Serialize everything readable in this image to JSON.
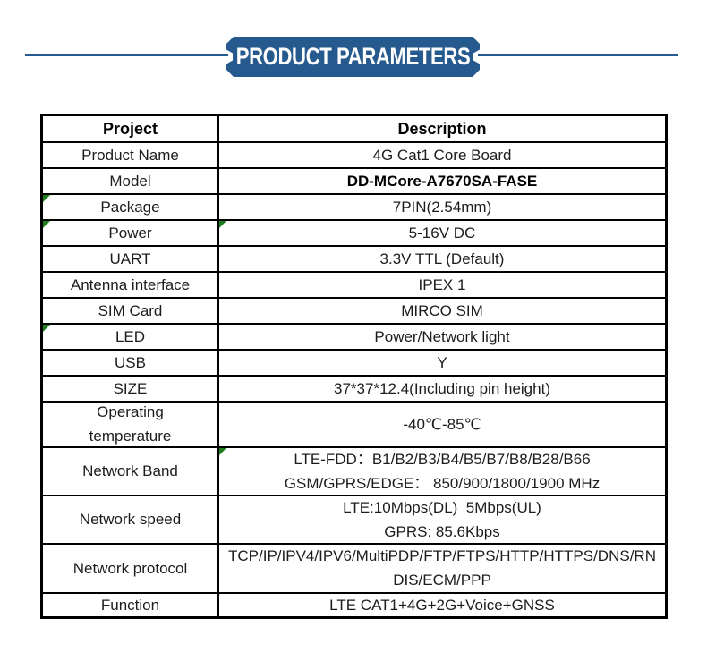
{
  "header": {
    "title": "PRODUCT PARAMETERS",
    "accent_color": "#265a8e"
  },
  "table": {
    "flag_color": "#1e7e1e",
    "border_color": "#000000",
    "columns": {
      "project": "Project",
      "description": "Description"
    },
    "rows": [
      {
        "project": "Product Name",
        "description": "4G Cat1 Core Board"
      },
      {
        "project": "Model",
        "description": "DD-MCore-A7670SA-FASE"
      },
      {
        "project": "Package",
        "description": "7PIN(2.54mm)"
      },
      {
        "project": "Power",
        "description": "5-16V DC"
      },
      {
        "project": "UART",
        "description": "3.3V TTL (Default)"
      },
      {
        "project": "Antenna interface",
        "description": "IPEX 1"
      },
      {
        "project": "SIM Card",
        "description": "MIRCO SIM"
      },
      {
        "project": "LED",
        "description": "Power/Network light"
      },
      {
        "project": "USB",
        "description": "Y"
      },
      {
        "project": "SIZE",
        "description": "37*37*12.4(Including pin height)"
      },
      {
        "project": "Operating temperature",
        "description": "-40℃-85℃"
      },
      {
        "project": "Network Band",
        "description_line1": "LTE-FDD：B1/B2/B3/B4/B5/B7/B8/B28/B66",
        "description_line2": "GSM/GPRS/EDGE： 850/900/1800/1900 MHz"
      },
      {
        "project": "Network speed",
        "description_line1": "LTE:10Mbps(DL)  5Mbps(UL)",
        "description_line2": "GPRS: 85.6Kbps"
      },
      {
        "project": "Network protocol",
        "description": "TCP/IP/IPV4/IPV6/MultiPDP/FTP/FTPS/HTTP/HTTPS/DNS/RNDIS/ECM/PPP"
      },
      {
        "project": "Function",
        "description": "LTE CAT1+4G+2G+Voice+GNSS"
      }
    ]
  }
}
